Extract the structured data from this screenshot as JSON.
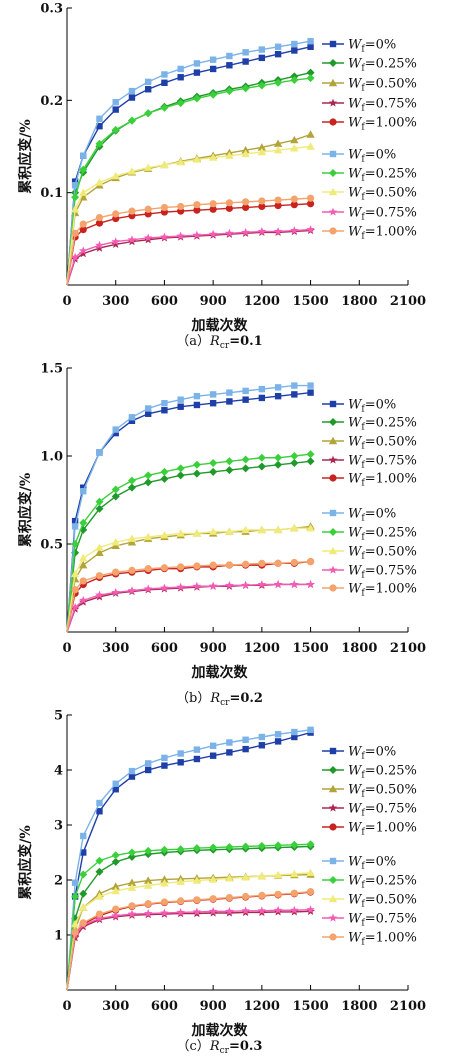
{
  "legend_labels": [
    "0%",
    "0.25%",
    "0.50%",
    "0.75%",
    "1.00%",
    "0%",
    "0.25%",
    "0.50%",
    "0.75%",
    "1.00%"
  ],
  "legend_prefix": "W",
  "legend_sub": "f",
  "x_ticks": [
    "0",
    "300",
    "600",
    "900",
    "1200",
    "1500",
    "1800",
    "2100"
  ],
  "xlabel": "加载次数",
  "ylabel": "累积应变/%",
  "colors": {
    "dark": [
      "#1f3fa8",
      "#1f9a2a",
      "#b2a43a",
      "#a8284f",
      "#c8231f"
    ],
    "light": [
      "#7bb3e8",
      "#3bd03b",
      "#f0ea78",
      "#f25cb4",
      "#f3a36b"
    ]
  },
  "markers": [
    "square",
    "diamond",
    "triangle",
    "star",
    "circle",
    "square",
    "diamond",
    "triangle",
    "star",
    "circle"
  ],
  "chart_data": [
    {
      "type": "line",
      "caption_pre": "（a）",
      "caption_var": "R",
      "caption_sub": "cr",
      "caption_post": "=0.1",
      "xlabel": "加载次数",
      "ylabel": "累积应变/%",
      "xlim": [
        0,
        2100
      ],
      "ylim": [
        0,
        0.3
      ],
      "y_ticks": [
        "0.1",
        "0.2",
        "0.3"
      ],
      "x": [
        50,
        100,
        200,
        300,
        400,
        500,
        600,
        700,
        800,
        900,
        1000,
        1100,
        1200,
        1300,
        1400,
        1500
      ],
      "series": [
        {
          "name": "0%",
          "values": [
            0.112,
            0.14,
            0.172,
            0.19,
            0.203,
            0.212,
            0.219,
            0.225,
            0.23,
            0.234,
            0.238,
            0.242,
            0.246,
            0.25,
            0.254,
            0.258
          ]
        },
        {
          "name": "0.25%",
          "values": [
            0.1,
            0.122,
            0.15,
            0.167,
            0.178,
            0.186,
            0.193,
            0.199,
            0.204,
            0.208,
            0.212,
            0.215,
            0.219,
            0.222,
            0.226,
            0.23
          ]
        },
        {
          "name": "0.50%",
          "values": [
            0.078,
            0.095,
            0.108,
            0.116,
            0.122,
            0.126,
            0.13,
            0.134,
            0.137,
            0.14,
            0.143,
            0.146,
            0.149,
            0.153,
            0.157,
            0.163
          ]
        },
        {
          "name": "0.75%",
          "values": [
            0.028,
            0.034,
            0.04,
            0.044,
            0.047,
            0.049,
            0.051,
            0.052,
            0.053,
            0.054,
            0.055,
            0.056,
            0.057,
            0.057,
            0.058,
            0.059
          ]
        },
        {
          "name": "1.00%",
          "values": [
            0.052,
            0.06,
            0.067,
            0.072,
            0.075,
            0.077,
            0.079,
            0.08,
            0.081,
            0.082,
            0.083,
            0.084,
            0.085,
            0.086,
            0.087,
            0.088
          ]
        },
        {
          "name": "0%",
          "values": [
            0.108,
            0.14,
            0.18,
            0.198,
            0.21,
            0.22,
            0.228,
            0.234,
            0.24,
            0.244,
            0.248,
            0.252,
            0.255,
            0.258,
            0.261,
            0.264
          ]
        },
        {
          "name": "0.25%",
          "values": [
            0.095,
            0.125,
            0.153,
            0.168,
            0.178,
            0.186,
            0.192,
            0.197,
            0.202,
            0.206,
            0.21,
            0.213,
            0.216,
            0.219,
            0.222,
            0.224
          ]
        },
        {
          "name": "0.50%",
          "values": [
            0.082,
            0.1,
            0.111,
            0.118,
            0.123,
            0.127,
            0.13,
            0.133,
            0.136,
            0.138,
            0.14,
            0.142,
            0.144,
            0.146,
            0.148,
            0.15
          ]
        },
        {
          "name": "0.75%",
          "values": [
            0.03,
            0.037,
            0.043,
            0.047,
            0.049,
            0.051,
            0.052,
            0.053,
            0.054,
            0.055,
            0.056,
            0.057,
            0.058,
            0.058,
            0.059,
            0.06
          ]
        },
        {
          "name": "1.00%",
          "values": [
            0.056,
            0.066,
            0.073,
            0.077,
            0.08,
            0.082,
            0.084,
            0.085,
            0.087,
            0.088,
            0.089,
            0.09,
            0.091,
            0.092,
            0.093,
            0.094
          ]
        }
      ]
    },
    {
      "type": "line",
      "caption_pre": "（b）",
      "caption_var": "R",
      "caption_sub": "cr",
      "caption_post": "=0.2",
      "xlabel": "加载次数",
      "ylabel": "累积应变/%",
      "xlim": [
        0,
        2100
      ],
      "ylim": [
        0,
        1.5
      ],
      "y_ticks": [
        "0.5",
        "1.0",
        "1.5"
      ],
      "x": [
        50,
        100,
        200,
        300,
        400,
        500,
        600,
        700,
        800,
        900,
        1000,
        1100,
        1200,
        1300,
        1400,
        1500
      ],
      "series": [
        {
          "name": "0%",
          "values": [
            0.63,
            0.82,
            1.02,
            1.13,
            1.2,
            1.24,
            1.26,
            1.28,
            1.29,
            1.3,
            1.31,
            1.32,
            1.33,
            1.34,
            1.35,
            1.36
          ]
        },
        {
          "name": "0.25%",
          "values": [
            0.45,
            0.58,
            0.7,
            0.77,
            0.82,
            0.85,
            0.87,
            0.89,
            0.9,
            0.91,
            0.92,
            0.93,
            0.94,
            0.95,
            0.96,
            0.97
          ]
        },
        {
          "name": "0.50%",
          "values": [
            0.3,
            0.38,
            0.45,
            0.49,
            0.51,
            0.53,
            0.54,
            0.55,
            0.56,
            0.56,
            0.57,
            0.57,
            0.58,
            0.58,
            0.59,
            0.6
          ]
        },
        {
          "name": "0.75%",
          "values": [
            0.13,
            0.17,
            0.2,
            0.22,
            0.23,
            0.24,
            0.245,
            0.25,
            0.255,
            0.26,
            0.26,
            0.265,
            0.265,
            0.27,
            0.27,
            0.27
          ]
        },
        {
          "name": "1.00%",
          "values": [
            0.22,
            0.27,
            0.31,
            0.33,
            0.34,
            0.35,
            0.36,
            0.36,
            0.37,
            0.37,
            0.38,
            0.38,
            0.38,
            0.39,
            0.39,
            0.4
          ]
        },
        {
          "name": "0%",
          "values": [
            0.6,
            0.8,
            1.02,
            1.15,
            1.22,
            1.27,
            1.3,
            1.32,
            1.34,
            1.35,
            1.36,
            1.37,
            1.38,
            1.39,
            1.4,
            1.4
          ]
        },
        {
          "name": "0.25%",
          "values": [
            0.5,
            0.62,
            0.74,
            0.81,
            0.86,
            0.89,
            0.91,
            0.93,
            0.95,
            0.96,
            0.97,
            0.98,
            0.99,
            0.99,
            1.0,
            1.01
          ]
        },
        {
          "name": "0.50%",
          "values": [
            0.33,
            0.42,
            0.48,
            0.51,
            0.53,
            0.54,
            0.55,
            0.56,
            0.56,
            0.57,
            0.57,
            0.58,
            0.58,
            0.58,
            0.59,
            0.59
          ]
        },
        {
          "name": "0.75%",
          "values": [
            0.14,
            0.18,
            0.21,
            0.225,
            0.235,
            0.245,
            0.25,
            0.255,
            0.26,
            0.26,
            0.265,
            0.265,
            0.27,
            0.27,
            0.27,
            0.27
          ]
        },
        {
          "name": "1.00%",
          "values": [
            0.24,
            0.29,
            0.32,
            0.34,
            0.35,
            0.36,
            0.365,
            0.37,
            0.375,
            0.38,
            0.38,
            0.385,
            0.39,
            0.39,
            0.395,
            0.4
          ]
        }
      ]
    },
    {
      "type": "line",
      "caption_pre": "（c）",
      "caption_var": "R",
      "caption_sub": "cr",
      "caption_post": "=0.3",
      "xlabel": "加载次数",
      "ylabel": "累积应变/%",
      "xlim": [
        0,
        2100
      ],
      "ylim": [
        0,
        5
      ],
      "y_ticks": [
        "1",
        "2",
        "3",
        "4",
        "5"
      ],
      "x": [
        50,
        100,
        200,
        300,
        400,
        500,
        600,
        700,
        800,
        900,
        1000,
        1100,
        1200,
        1300,
        1400,
        1500
      ],
      "series": [
        {
          "name": "0%",
          "values": [
            1.7,
            2.5,
            3.25,
            3.65,
            3.88,
            4.0,
            4.08,
            4.14,
            4.2,
            4.26,
            4.32,
            4.38,
            4.45,
            4.52,
            4.6,
            4.68
          ]
        },
        {
          "name": "0.25%",
          "values": [
            1.3,
            1.75,
            2.15,
            2.33,
            2.42,
            2.47,
            2.5,
            2.52,
            2.54,
            2.55,
            2.56,
            2.57,
            2.58,
            2.59,
            2.6,
            2.61
          ]
        },
        {
          "name": "0.50%",
          "values": [
            1.1,
            1.5,
            1.75,
            1.88,
            1.95,
            1.99,
            2.01,
            2.02,
            2.03,
            2.04,
            2.05,
            2.06,
            2.07,
            2.08,
            2.09,
            2.1
          ]
        },
        {
          "name": "0.75%",
          "values": [
            0.95,
            1.15,
            1.28,
            1.33,
            1.36,
            1.37,
            1.38,
            1.39,
            1.39,
            1.4,
            1.4,
            1.41,
            1.41,
            1.42,
            1.42,
            1.43
          ]
        },
        {
          "name": "1.00%",
          "values": [
            1.0,
            1.2,
            1.35,
            1.45,
            1.52,
            1.56,
            1.59,
            1.61,
            1.63,
            1.65,
            1.67,
            1.69,
            1.71,
            1.73,
            1.75,
            1.78
          ]
        },
        {
          "name": "0%",
          "values": [
            1.95,
            2.8,
            3.4,
            3.75,
            3.98,
            4.12,
            4.22,
            4.3,
            4.37,
            4.44,
            4.5,
            4.55,
            4.6,
            4.65,
            4.69,
            4.73
          ]
        },
        {
          "name": "0.25%",
          "values": [
            1.7,
            2.1,
            2.35,
            2.45,
            2.5,
            2.53,
            2.55,
            2.56,
            2.58,
            2.59,
            2.6,
            2.61,
            2.62,
            2.63,
            2.64,
            2.65
          ]
        },
        {
          "name": "0.50%",
          "values": [
            1.2,
            1.5,
            1.7,
            1.8,
            1.86,
            1.9,
            1.94,
            1.97,
            1.99,
            2.01,
            2.03,
            2.05,
            2.07,
            2.09,
            2.11,
            2.13
          ]
        },
        {
          "name": "0.75%",
          "values": [
            1.0,
            1.18,
            1.3,
            1.35,
            1.38,
            1.39,
            1.4,
            1.41,
            1.42,
            1.43,
            1.43,
            1.44,
            1.44,
            1.45,
            1.45,
            1.46
          ]
        },
        {
          "name": "1.00%",
          "values": [
            1.05,
            1.22,
            1.38,
            1.47,
            1.53,
            1.57,
            1.6,
            1.62,
            1.64,
            1.66,
            1.68,
            1.7,
            1.72,
            1.74,
            1.76,
            1.79
          ]
        }
      ]
    }
  ]
}
